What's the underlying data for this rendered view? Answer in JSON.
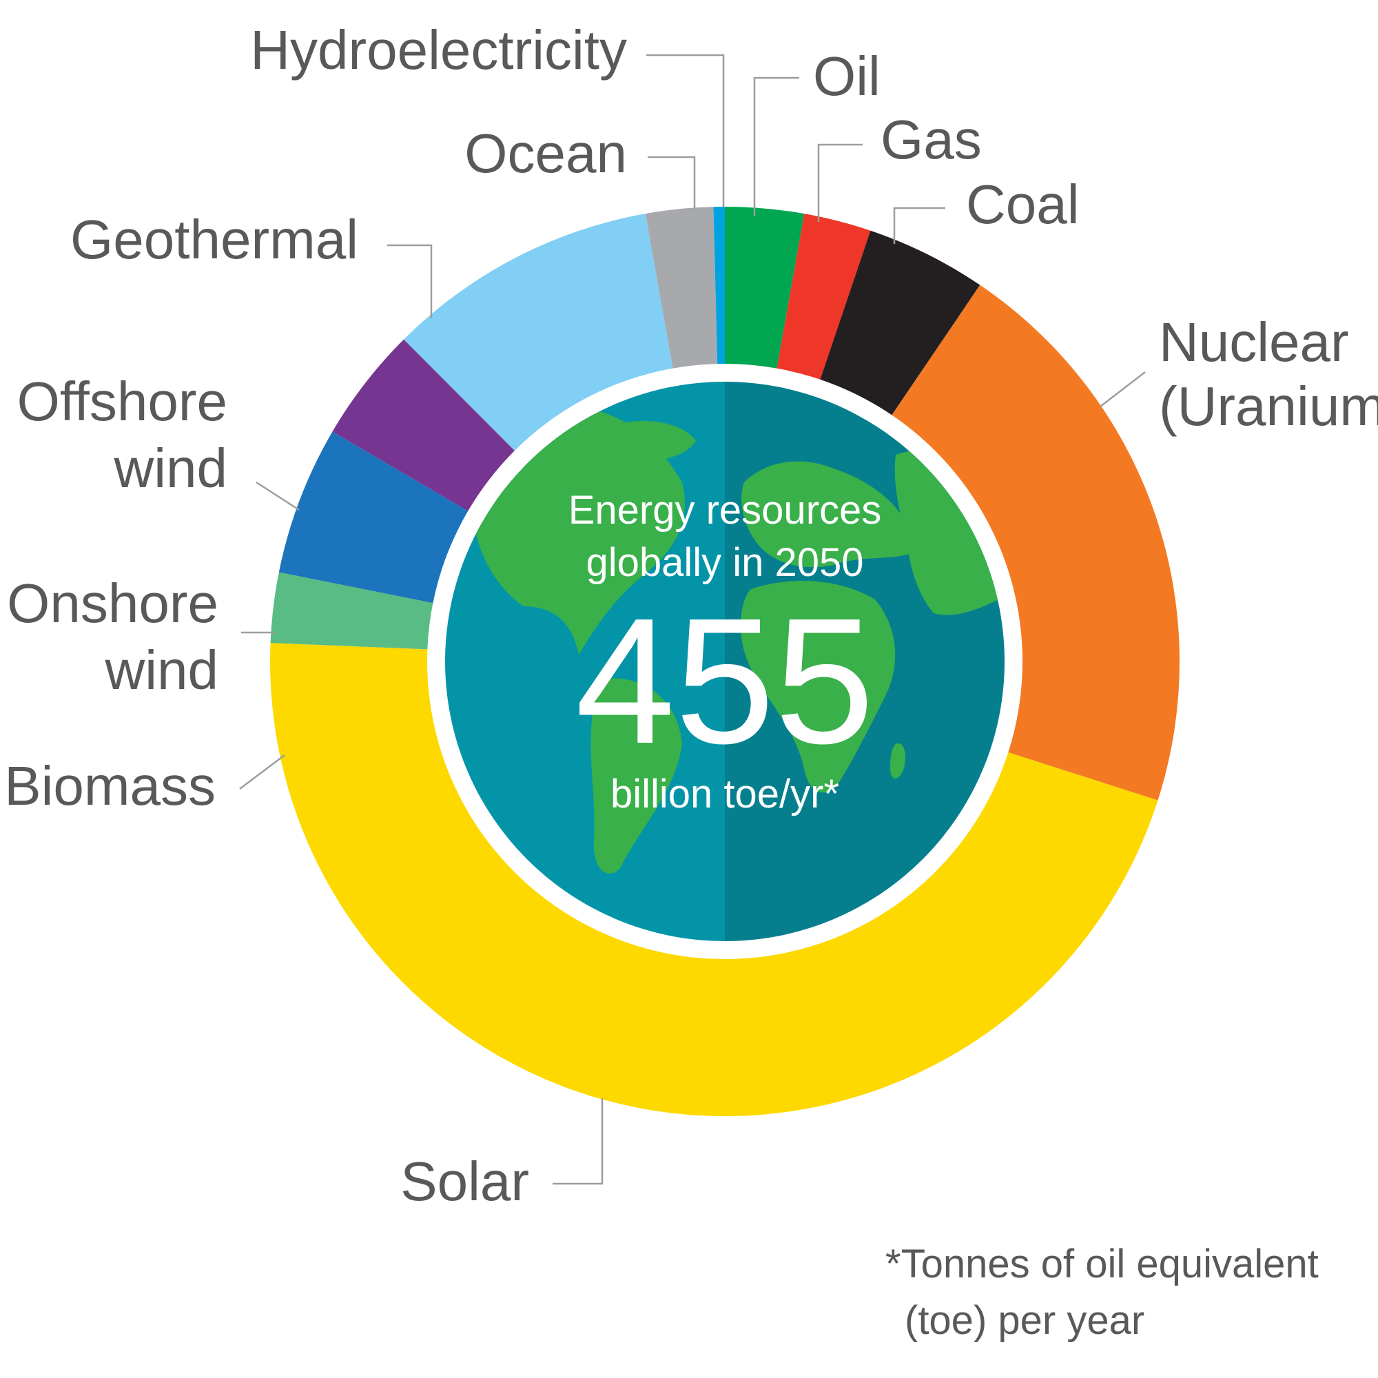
{
  "chart_data": {
    "type": "pie",
    "style": "donut",
    "slices": [
      {
        "label": [
          "Oil"
        ],
        "value": 2.8,
        "color": "#00a650"
      },
      {
        "label": [
          "Gas"
        ],
        "value": 2.4,
        "color": "#ee3629"
      },
      {
        "label": [
          "Coal"
        ],
        "value": 4.3,
        "color": "#231f20"
      },
      {
        "label": [
          "Nuclear",
          "(Uranium)"
        ],
        "value": 20.5,
        "color": "#f37a22"
      },
      {
        "label": [
          "Solar"
        ],
        "value": 45.8,
        "color": "#fdd900"
      },
      {
        "label": [
          "Biomass"
        ],
        "value": 2.5,
        "color": "#58bc84"
      },
      {
        "label": [
          "Onshore",
          "wind"
        ],
        "value": 5.3,
        "color": "#1c75bc"
      },
      {
        "label": [
          "Offshore",
          "wind"
        ],
        "value": 4.1,
        "color": "#773592"
      },
      {
        "label": [
          "Geothermal"
        ],
        "value": 9.7,
        "color": "#81cff4"
      },
      {
        "label": [
          "Ocean"
        ],
        "value": 2.4,
        "color": "#a7a9ac"
      },
      {
        "label": [
          "Hydroelectricity"
        ],
        "value": 0.4,
        "color": "#00a3e0"
      }
    ]
  },
  "center": {
    "line1": "Energy resources",
    "line2": "globally in 2050",
    "value": "455",
    "unit": "billion toe/yr*"
  },
  "footnote": {
    "line1": "*Tonnes of oil equivalent",
    "line2": "(toe) per year"
  },
  "colors": {
    "ocean_left": "#0394a8",
    "ocean_right": "#057f8e",
    "land": "#39b04a",
    "label_text": "#58595b"
  }
}
